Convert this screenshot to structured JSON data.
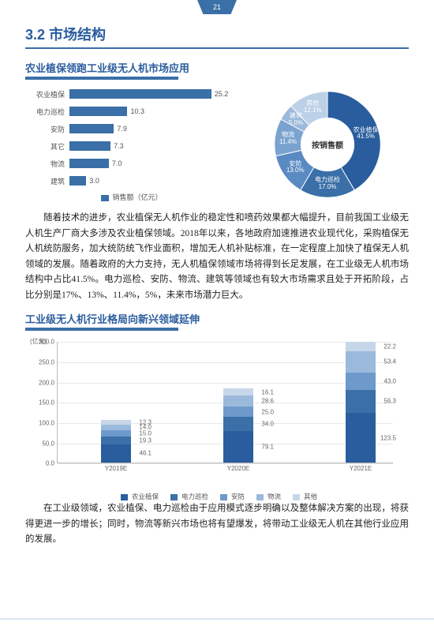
{
  "page_number": "21",
  "section_title": "3.2 市场结构",
  "subheading1": "农业植保领跑工业级无人机市场应用",
  "subheading2": "工业级无人机行业格局向新兴领域延伸",
  "bar_chart": {
    "categories": [
      "农业植保",
      "电力巡检",
      "安防",
      "其它",
      "物流",
      "建筑"
    ],
    "values": [
      25.2,
      10.3,
      7.9,
      7.3,
      7.0,
      3.0
    ],
    "max": 30,
    "bar_color": "#3a6fa8",
    "legend": "销售额（亿元）"
  },
  "donut_chart": {
    "center_label": "按销售额",
    "slices": [
      {
        "label": "农业植保",
        "value": 41.5,
        "color": "#2a5d9e"
      },
      {
        "label": "电力巡检",
        "value": 17.0,
        "color": "#3a6fa8"
      },
      {
        "label": "安防",
        "value": 13.0,
        "color": "#5a8ac2"
      },
      {
        "label": "物流",
        "value": 11.4,
        "color": "#7aa3d0"
      },
      {
        "label": "建筑",
        "value": 5.0,
        "color": "#9bb9db"
      },
      {
        "label": "其他",
        "value": 12.1,
        "color": "#bcd0e7"
      }
    ]
  },
  "paragraph1": "随着技术的进步，农业植保无人机作业的稳定性和喷药效果都大幅提升，目前我国工业级无人机生产厂商大多涉及农业植保领域。2018年以来，各地政府加速推进农业现代化，采购植保无人机统防服务，加大统防统飞作业面积，增加无人机补贴标准，在一定程度上加快了植保无人机领域的发展。随着政府的大力支持，无人机植保领域市场将得到长足发展，在工业级无人机市场结构中占比41.5%。电力巡检、安防、物流、建筑等领域也有较大市场需求且处于开拓阶段，占比分别是17%、13%、11.4%，5%，未来市场潜力巨大。",
  "paragraph2": "在工业级领域，农业植保、电力巡检由于应用模式逐步明确以及整体解决方案的出现，将获得更进一步的增长；同时，物流等新兴市场也将有望爆发，将带动工业级无人机在其他行业应用的发展。",
  "stacked_chart": {
    "y_unit": "(亿元)",
    "ymax": 300,
    "ystep": 50,
    "categories": [
      "Y2019E",
      "Y2020E",
      "Y2021E"
    ],
    "series_names": [
      "农业植保",
      "电力巡检",
      "安防",
      "物流",
      "其他"
    ],
    "series_colors": [
      "#2a5d9e",
      "#3a6fa8",
      "#6d9acb",
      "#9bb9db",
      "#c7d7e9"
    ],
    "stacks": [
      [
        46.1,
        19.3,
        15.0,
        14.0,
        12.3
      ],
      [
        79.1,
        34.0,
        25.0,
        28.6,
        16.1
      ],
      [
        123.5,
        56.3,
        43.0,
        53.4,
        22.2
      ]
    ]
  },
  "legend_items": [
    {
      "label": "农业植保",
      "color": "#2a5d9e"
    },
    {
      "label": "电力巡检",
      "color": "#3a6fa8"
    },
    {
      "label": "安防",
      "color": "#6d9acb"
    },
    {
      "label": "物流",
      "color": "#9bb9db"
    },
    {
      "label": "其他",
      "color": "#c7d7e9"
    }
  ]
}
